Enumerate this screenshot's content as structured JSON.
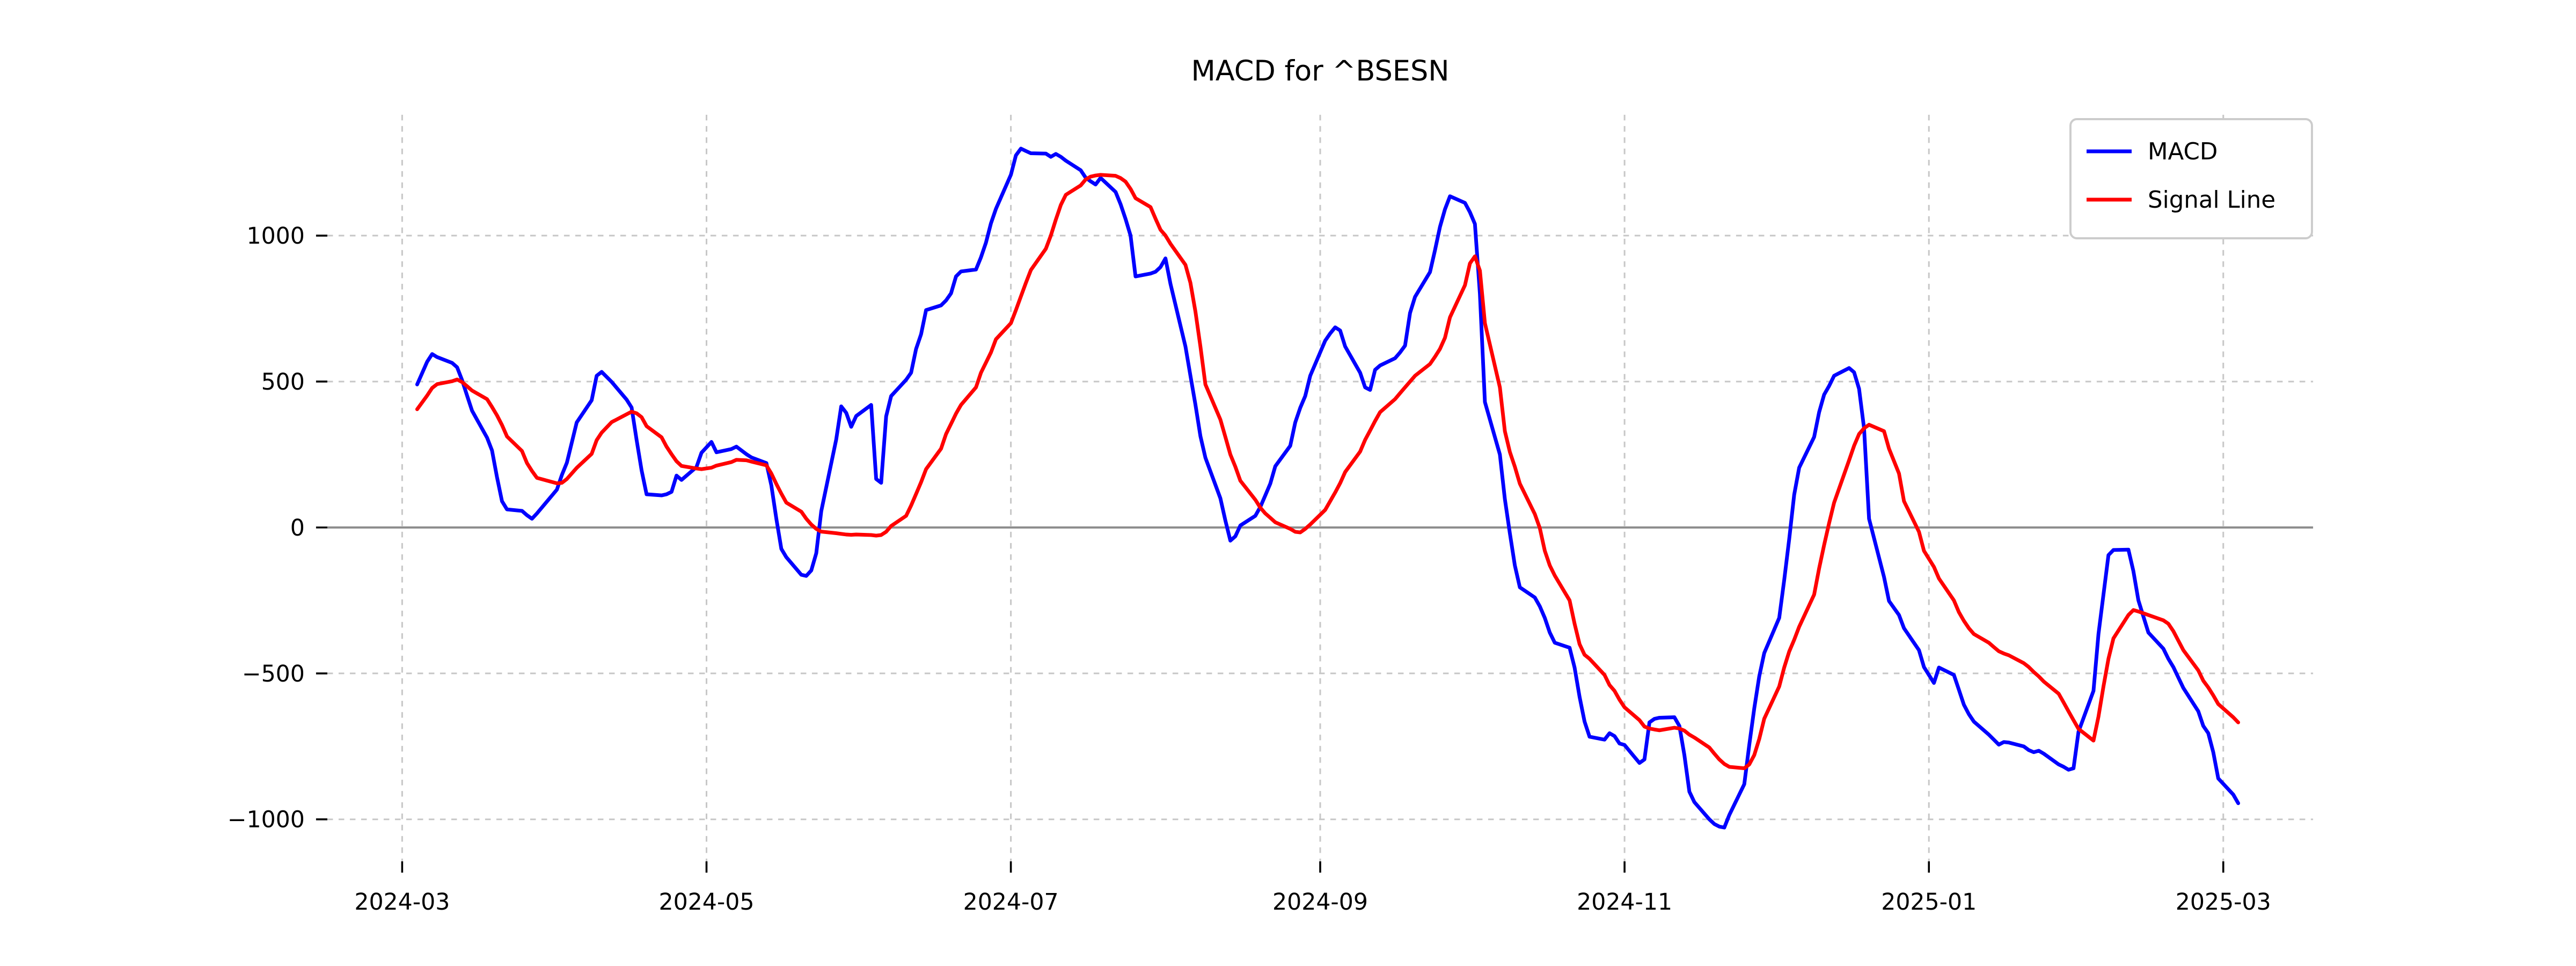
{
  "figure": {
    "background": "#ffffff"
  },
  "legend": {
    "position": "upper right",
    "entries": [
      {
        "label": "MACD",
        "color": "#0000ff"
      },
      {
        "label": "Signal Line",
        "color": "#ff0000"
      }
    ]
  },
  "chart_data": {
    "type": "line",
    "title": "MACD for ^BSESN",
    "xlabel": "",
    "ylabel": "",
    "grid": true,
    "legend_position": "upper right",
    "x_axis": {
      "range": [
        "2024-02-15",
        "2025-03-19"
      ],
      "ticks": [
        "2024-03-01",
        "2024-05-01",
        "2024-07-01",
        "2024-09-01",
        "2024-11-01",
        "2025-01-01",
        "2025-03-01"
      ],
      "tick_labels": [
        "2024-03",
        "2024-05",
        "2024-07",
        "2024-09",
        "2024-11",
        "2025-01",
        "2025-03"
      ]
    },
    "y_axis": {
      "range": [
        -1144,
        1414
      ],
      "ticks": [
        -1000,
        -500,
        0,
        500,
        1000
      ],
      "tick_labels": [
        "−1000",
        "−500",
        "0",
        "500",
        "1000"
      ]
    },
    "zero_line_color": "#8c8c8c",
    "grid_color": "#c7c7c7",
    "series_names": [
      "MACD",
      "Signal Line"
    ],
    "series_colors": [
      "#0000ff",
      "#ff0000"
    ],
    "points": [
      [
        "2024-03-04",
        490,
        405
      ],
      [
        "2024-03-06",
        568,
        452
      ],
      [
        "2024-03-07",
        594,
        478
      ],
      [
        "2024-03-08",
        584,
        491
      ],
      [
        "2024-03-11",
        564,
        501
      ],
      [
        "2024-03-12",
        549,
        507
      ],
      [
        "2024-03-13",
        505,
        498
      ],
      [
        "2024-03-14",
        452,
        484
      ],
      [
        "2024-03-15",
        400,
        469
      ],
      [
        "2024-03-18",
        308,
        440
      ],
      [
        "2024-03-19",
        264,
        413
      ],
      [
        "2024-03-20",
        172,
        384
      ],
      [
        "2024-03-21",
        90,
        351
      ],
      [
        "2024-03-22",
        62,
        312
      ],
      [
        "2024-03-25",
        57,
        262
      ],
      [
        "2024-03-26",
        42,
        221
      ],
      [
        "2024-03-27",
        30,
        194
      ],
      [
        "2024-03-28",
        48,
        170
      ],
      [
        "2024-04-01",
        130,
        151
      ],
      [
        "2024-04-02",
        180,
        153
      ],
      [
        "2024-04-03",
        222,
        166
      ],
      [
        "2024-04-05",
        360,
        204
      ],
      [
        "2024-04-08",
        436,
        252
      ],
      [
        "2024-04-09",
        520,
        299
      ],
      [
        "2024-04-10",
        533,
        325
      ],
      [
        "2024-04-12",
        499,
        361
      ],
      [
        "2024-04-15",
        438,
        388
      ],
      [
        "2024-04-16",
        411,
        397
      ],
      [
        "2024-04-17",
        300,
        391
      ],
      [
        "2024-04-18",
        196,
        378
      ],
      [
        "2024-04-19",
        114,
        347
      ],
      [
        "2024-04-22",
        110,
        309
      ],
      [
        "2024-04-23",
        114,
        277
      ],
      [
        "2024-04-24",
        122,
        251
      ],
      [
        "2024-04-25",
        178,
        227
      ],
      [
        "2024-04-26",
        163,
        211
      ],
      [
        "2024-04-29",
        207,
        202
      ],
      [
        "2024-04-30",
        256,
        200
      ],
      [
        "2024-05-02",
        293,
        205
      ],
      [
        "2024-05-03",
        258,
        212
      ],
      [
        "2024-05-06",
        269,
        224
      ],
      [
        "2024-05-07",
        277,
        232
      ],
      [
        "2024-05-09",
        251,
        230
      ],
      [
        "2024-05-10",
        240,
        226
      ],
      [
        "2024-05-13",
        221,
        213
      ],
      [
        "2024-05-14",
        144,
        185
      ],
      [
        "2024-05-15",
        30,
        149
      ],
      [
        "2024-05-16",
        -73,
        116
      ],
      [
        "2024-05-17",
        -102,
        85
      ],
      [
        "2024-05-20",
        -162,
        54
      ],
      [
        "2024-05-21",
        -166,
        30
      ],
      [
        "2024-05-22",
        -147,
        10
      ],
      [
        "2024-05-23",
        -88,
        -5
      ],
      [
        "2024-05-24",
        56,
        -14
      ],
      [
        "2024-05-27",
        302,
        -20
      ],
      [
        "2024-05-28",
        415,
        -22
      ],
      [
        "2024-05-29",
        393,
        -24
      ],
      [
        "2024-05-30",
        345,
        -25
      ],
      [
        "2024-05-31",
        382,
        -24
      ],
      [
        "2024-06-03",
        420,
        -26
      ],
      [
        "2024-06-04",
        166,
        -28
      ],
      [
        "2024-06-05",
        153,
        -26
      ],
      [
        "2024-06-06",
        381,
        -15
      ],
      [
        "2024-06-07",
        450,
        5
      ],
      [
        "2024-06-10",
        506,
        40
      ],
      [
        "2024-06-11",
        530,
        75
      ],
      [
        "2024-06-12",
        612,
        115
      ],
      [
        "2024-06-13",
        662,
        155
      ],
      [
        "2024-06-14",
        745,
        200
      ],
      [
        "2024-06-17",
        761,
        270
      ],
      [
        "2024-06-18",
        778,
        320
      ],
      [
        "2024-06-19",
        802,
        355
      ],
      [
        "2024-06-20",
        860,
        390
      ],
      [
        "2024-06-21",
        877,
        420
      ],
      [
        "2024-06-24",
        884,
        480
      ],
      [
        "2024-06-25",
        926,
        530
      ],
      [
        "2024-06-26",
        976,
        565
      ],
      [
        "2024-06-27",
        1042,
        600
      ],
      [
        "2024-06-28",
        1092,
        645
      ],
      [
        "2024-07-01",
        1209,
        700
      ],
      [
        "2024-07-02",
        1275,
        745
      ],
      [
        "2024-07-03",
        1298,
        792
      ],
      [
        "2024-07-04",
        1290,
        838
      ],
      [
        "2024-07-05",
        1282,
        882
      ],
      [
        "2024-07-08",
        1281,
        955
      ],
      [
        "2024-07-09",
        1270,
        1000
      ],
      [
        "2024-07-10",
        1280,
        1055
      ],
      [
        "2024-07-11",
        1270,
        1105
      ],
      [
        "2024-07-12",
        1257,
        1140
      ],
      [
        "2024-07-15",
        1224,
        1172
      ],
      [
        "2024-07-16",
        1199,
        1192
      ],
      [
        "2024-07-17",
        1186,
        1202
      ],
      [
        "2024-07-18",
        1175,
        1206
      ],
      [
        "2024-07-19",
        1198,
        1208
      ],
      [
        "2024-07-22",
        1150,
        1205
      ],
      [
        "2024-07-23",
        1108,
        1197
      ],
      [
        "2024-07-24",
        1057,
        1185
      ],
      [
        "2024-07-25",
        1000,
        1160
      ],
      [
        "2024-07-26",
        860,
        1128
      ],
      [
        "2024-07-29",
        870,
        1098
      ],
      [
        "2024-07-30",
        876,
        1058
      ],
      [
        "2024-07-31",
        892,
        1020
      ],
      [
        "2024-08-01",
        922,
        1000
      ],
      [
        "2024-08-02",
        835,
        972
      ],
      [
        "2024-08-05",
        620,
        900
      ],
      [
        "2024-08-06",
        520,
        838
      ],
      [
        "2024-08-07",
        421,
        740
      ],
      [
        "2024-08-08",
        313,
        620
      ],
      [
        "2024-08-09",
        239,
        490
      ],
      [
        "2024-08-12",
        100,
        370
      ],
      [
        "2024-08-13",
        24,
        310
      ],
      [
        "2024-08-14",
        -45,
        250
      ],
      [
        "2024-08-15",
        -30,
        208
      ],
      [
        "2024-08-16",
        7,
        160
      ],
      [
        "2024-08-19",
        40,
        95
      ],
      [
        "2024-08-20",
        70,
        68
      ],
      [
        "2024-08-21",
        110,
        48
      ],
      [
        "2024-08-22",
        150,
        33
      ],
      [
        "2024-08-23",
        210,
        18
      ],
      [
        "2024-08-26",
        280,
        -5
      ],
      [
        "2024-08-27",
        360,
        -15
      ],
      [
        "2024-08-28",
        410,
        -17
      ],
      [
        "2024-08-29",
        450,
        -5
      ],
      [
        "2024-08-30",
        520,
        10
      ],
      [
        "2024-09-02",
        640,
        60
      ],
      [
        "2024-09-03",
        665,
        90
      ],
      [
        "2024-09-04",
        686,
        120
      ],
      [
        "2024-09-05",
        675,
        152
      ],
      [
        "2024-09-06",
        620,
        190
      ],
      [
        "2024-09-09",
        530,
        260
      ],
      [
        "2024-09-10",
        480,
        300
      ],
      [
        "2024-09-11",
        471,
        332
      ],
      [
        "2024-09-12",
        540,
        365
      ],
      [
        "2024-09-13",
        555,
        395
      ],
      [
        "2024-09-16",
        580,
        440
      ],
      [
        "2024-09-17",
        600,
        460
      ],
      [
        "2024-09-18",
        623,
        480
      ],
      [
        "2024-09-19",
        735,
        500
      ],
      [
        "2024-09-20",
        790,
        520
      ],
      [
        "2024-09-23",
        875,
        560
      ],
      [
        "2024-09-24",
        950,
        585
      ],
      [
        "2024-09-25",
        1030,
        612
      ],
      [
        "2024-09-26",
        1090,
        650
      ],
      [
        "2024-09-27",
        1135,
        720
      ],
      [
        "2024-09-30",
        1112,
        830
      ],
      [
        "2024-10-01",
        1080,
        905
      ],
      [
        "2024-10-02",
        1040,
        929
      ],
      [
        "2024-10-03",
        800,
        880
      ],
      [
        "2024-10-04",
        430,
        700
      ],
      [
        "2024-10-07",
        250,
        480
      ],
      [
        "2024-10-08",
        97,
        330
      ],
      [
        "2024-10-09",
        -20,
        259
      ],
      [
        "2024-10-10",
        -130,
        208
      ],
      [
        "2024-10-11",
        -205,
        150
      ],
      [
        "2024-10-14",
        -240,
        46
      ],
      [
        "2024-10-15",
        -270,
        -2
      ],
      [
        "2024-10-16",
        -310,
        -80
      ],
      [
        "2024-10-17",
        -360,
        -130
      ],
      [
        "2024-10-18",
        -395,
        -165
      ],
      [
        "2024-10-21",
        -412,
        -250
      ],
      [
        "2024-10-22",
        -480,
        -330
      ],
      [
        "2024-10-23",
        -580,
        -400
      ],
      [
        "2024-10-24",
        -665,
        -436
      ],
      [
        "2024-10-25",
        -717,
        -450
      ],
      [
        "2024-10-28",
        -727,
        -505
      ],
      [
        "2024-10-29",
        -705,
        -540
      ],
      [
        "2024-10-30",
        -715,
        -560
      ],
      [
        "2024-10-31",
        -740,
        -590
      ],
      [
        "2024-11-01",
        -745,
        -616
      ],
      [
        "2024-11-04",
        -807,
        -660
      ],
      [
        "2024-11-05",
        -795,
        -682
      ],
      [
        "2024-11-06",
        -668,
        -689
      ],
      [
        "2024-11-07",
        -656,
        -692
      ],
      [
        "2024-11-08",
        -652,
        -695
      ],
      [
        "2024-11-11",
        -650,
        -686
      ],
      [
        "2024-11-12",
        -680,
        -689
      ],
      [
        "2024-11-13",
        -780,
        -696
      ],
      [
        "2024-11-14",
        -905,
        -710
      ],
      [
        "2024-11-15",
        -941,
        -720
      ],
      [
        "2024-11-18",
        -1000,
        -754
      ],
      [
        "2024-11-19",
        -1016,
        -775
      ],
      [
        "2024-11-20",
        -1025,
        -795
      ],
      [
        "2024-11-21",
        -1028,
        -810
      ],
      [
        "2024-11-22",
        -985,
        -820
      ],
      [
        "2024-11-25",
        -880,
        -825
      ],
      [
        "2024-11-26",
        -745,
        -812
      ],
      [
        "2024-11-27",
        -620,
        -780
      ],
      [
        "2024-11-28",
        -510,
        -725
      ],
      [
        "2024-11-29",
        -430,
        -655
      ],
      [
        "2024-12-02",
        -310,
        -545
      ],
      [
        "2024-12-03",
        -180,
        -480
      ],
      [
        "2024-12-04",
        -40,
        -425
      ],
      [
        "2024-12-05",
        112,
        -385
      ],
      [
        "2024-12-06",
        205,
        -340
      ],
      [
        "2024-12-09",
        310,
        -230
      ],
      [
        "2024-12-10",
        395,
        -140
      ],
      [
        "2024-12-11",
        455,
        -60
      ],
      [
        "2024-12-12",
        485,
        15
      ],
      [
        "2024-12-13",
        520,
        85
      ],
      [
        "2024-12-16",
        546,
        230
      ],
      [
        "2024-12-17",
        532,
        280
      ],
      [
        "2024-12-18",
        475,
        320
      ],
      [
        "2024-12-19",
        340,
        340
      ],
      [
        "2024-12-20",
        30,
        352
      ],
      [
        "2024-12-23",
        -170,
        330
      ],
      [
        "2024-12-24",
        -252,
        270
      ],
      [
        "2024-12-26",
        -300,
        185
      ],
      [
        "2024-12-27",
        -345,
        90
      ],
      [
        "2024-12-30",
        -420,
        -15
      ],
      [
        "2024-12-31",
        -478,
        -80
      ],
      [
        "2025-01-02",
        -533,
        -135
      ],
      [
        "2025-01-03",
        -480,
        -175
      ],
      [
        "2025-01-06",
        -505,
        -250
      ],
      [
        "2025-01-07",
        -556,
        -290
      ],
      [
        "2025-01-08",
        -607,
        -320
      ],
      [
        "2025-01-09",
        -640,
        -345
      ],
      [
        "2025-01-10",
        -665,
        -365
      ],
      [
        "2025-01-13",
        -710,
        -395
      ],
      [
        "2025-01-14",
        -727,
        -410
      ],
      [
        "2025-01-15",
        -744,
        -424
      ],
      [
        "2025-01-16",
        -735,
        -432
      ],
      [
        "2025-01-17",
        -737,
        -438
      ],
      [
        "2025-01-20",
        -750,
        -465
      ],
      [
        "2025-01-21",
        -763,
        -478
      ],
      [
        "2025-01-22",
        -770,
        -495
      ],
      [
        "2025-01-23",
        -765,
        -510
      ],
      [
        "2025-01-24",
        -775,
        -528
      ],
      [
        "2025-01-27",
        -812,
        -570
      ],
      [
        "2025-01-28",
        -820,
        -600
      ],
      [
        "2025-01-29",
        -830,
        -630
      ],
      [
        "2025-01-30",
        -825,
        -660
      ],
      [
        "2025-01-31",
        -700,
        -690
      ],
      [
        "2025-02-03",
        -560,
        -730
      ],
      [
        "2025-02-04",
        -365,
        -648
      ],
      [
        "2025-02-05",
        -230,
        -545
      ],
      [
        "2025-02-06",
        -95,
        -450
      ],
      [
        "2025-02-07",
        -77,
        -380
      ],
      [
        "2025-02-10",
        -76,
        -300
      ],
      [
        "2025-02-11",
        -150,
        -283
      ],
      [
        "2025-02-12",
        -250,
        -288
      ],
      [
        "2025-02-14",
        -360,
        -300
      ],
      [
        "2025-02-17",
        -415,
        -318
      ],
      [
        "2025-02-18",
        -450,
        -330
      ],
      [
        "2025-02-19",
        -478,
        -355
      ],
      [
        "2025-02-21",
        -550,
        -420
      ],
      [
        "2025-02-24",
        -630,
        -490
      ],
      [
        "2025-02-25",
        -680,
        -525
      ],
      [
        "2025-02-26",
        -705,
        -548
      ],
      [
        "2025-02-27",
        -770,
        -575
      ],
      [
        "2025-02-28",
        -860,
        -605
      ],
      [
        "2025-03-03",
        -915,
        -650
      ],
      [
        "2025-03-04",
        -945,
        -668
      ]
    ]
  }
}
